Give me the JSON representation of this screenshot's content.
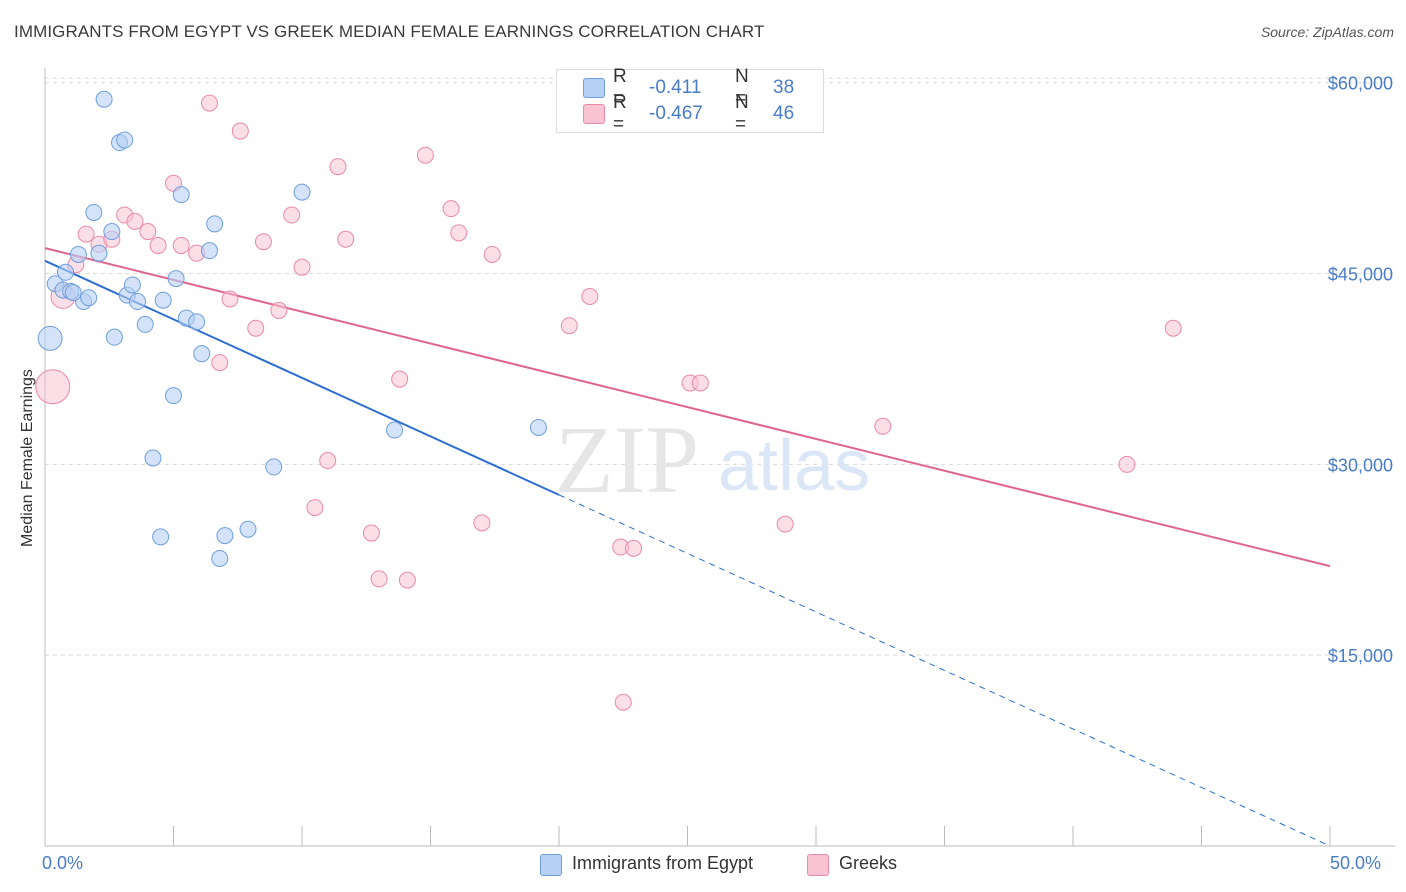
{
  "title": "IMMIGRANTS FROM EGYPT VS GREEK MEDIAN FEMALE EARNINGS CORRELATION CHART",
  "source": "Source: ZipAtlas.com",
  "watermark": {
    "zip": "ZIP",
    "atlas": "atlas"
  },
  "legend": {
    "series": [
      {
        "r_label": "R =",
        "r_value": "-0.411",
        "n_label": "N =",
        "n_value": "38"
      },
      {
        "r_label": "R =",
        "r_value": "-0.467",
        "n_label": "N =",
        "n_value": "46"
      }
    ]
  },
  "bottom_legend": [
    "Immigrants from Egypt",
    "Greeks"
  ],
  "colors": {
    "blue_fill": "#b7d1f5",
    "blue_stroke": "#6f9fdc",
    "blue_line": "#2c6fd0",
    "pink_fill": "#f9c3d3",
    "pink_stroke": "#e98aa8",
    "pink_line": "#e0648e",
    "accent_text": "#4a7cc7",
    "grid": "#d9d9d9"
  },
  "chart_data": {
    "type": "scatter",
    "title": "IMMIGRANTS FROM EGYPT VS GREEK MEDIAN FEMALE EARNINGS CORRELATION CHART",
    "xlabel": "",
    "ylabel": "Median Female Earnings",
    "xlim": [
      0,
      50
    ],
    "ylim": [
      0,
      61000
    ],
    "x_tick_labels": [
      "0.0%",
      "50.0%"
    ],
    "y_ticks": [
      15000,
      30000,
      45000,
      60000
    ],
    "y_tick_labels": [
      "$15,000",
      "$30,000",
      "$45,000",
      "$60,000"
    ],
    "grid": true,
    "legend_position": "top-center",
    "series": [
      {
        "name": "Immigrants from Egypt",
        "r": -0.411,
        "n": 38,
        "trend": {
          "x0": 0,
          "y0": 46000,
          "x_solid_end": 20,
          "x1": 50,
          "y1": 0
        },
        "points": [
          {
            "x": 0.2,
            "y": 39900,
            "s": 2
          },
          {
            "x": 0.4,
            "y": 44200,
            "s": 1
          },
          {
            "x": 0.7,
            "y": 43700,
            "s": 1
          },
          {
            "x": 0.8,
            "y": 45100,
            "s": 1
          },
          {
            "x": 1.0,
            "y": 43600,
            "s": 1
          },
          {
            "x": 1.3,
            "y": 46500,
            "s": 1
          },
          {
            "x": 1.5,
            "y": 42800,
            "s": 1
          },
          {
            "x": 1.7,
            "y": 43100,
            "s": 1
          },
          {
            "x": 1.9,
            "y": 49800,
            "s": 1
          },
          {
            "x": 2.1,
            "y": 46600,
            "s": 1
          },
          {
            "x": 2.3,
            "y": 58700,
            "s": 1
          },
          {
            "x": 2.6,
            "y": 48300,
            "s": 1
          },
          {
            "x": 2.7,
            "y": 40000,
            "s": 1
          },
          {
            "x": 2.9,
            "y": 55300,
            "s": 1
          },
          {
            "x": 3.1,
            "y": 55500,
            "s": 1
          },
          {
            "x": 3.2,
            "y": 43300,
            "s": 1
          },
          {
            "x": 3.4,
            "y": 44100,
            "s": 1
          },
          {
            "x": 3.6,
            "y": 42800,
            "s": 1
          },
          {
            "x": 3.9,
            "y": 41000,
            "s": 1
          },
          {
            "x": 4.2,
            "y": 30500,
            "s": 1
          },
          {
            "x": 4.5,
            "y": 24300,
            "s": 1
          },
          {
            "x": 4.6,
            "y": 42900,
            "s": 1
          },
          {
            "x": 5.0,
            "y": 35400,
            "s": 1
          },
          {
            "x": 5.1,
            "y": 44600,
            "s": 1
          },
          {
            "x": 5.3,
            "y": 51200,
            "s": 1
          },
          {
            "x": 5.5,
            "y": 41500,
            "s": 1
          },
          {
            "x": 5.9,
            "y": 41200,
            "s": 1
          },
          {
            "x": 6.1,
            "y": 38700,
            "s": 1
          },
          {
            "x": 6.4,
            "y": 46800,
            "s": 1
          },
          {
            "x": 6.6,
            "y": 48900,
            "s": 1
          },
          {
            "x": 6.8,
            "y": 22600,
            "s": 1
          },
          {
            "x": 7.0,
            "y": 24400,
            "s": 1
          },
          {
            "x": 7.9,
            "y": 24900,
            "s": 1
          },
          {
            "x": 8.9,
            "y": 29800,
            "s": 1
          },
          {
            "x": 10.0,
            "y": 51400,
            "s": 1
          },
          {
            "x": 13.6,
            "y": 32700,
            "s": 1
          },
          {
            "x": 19.2,
            "y": 32900,
            "s": 1
          },
          {
            "x": 1.1,
            "y": 43500,
            "s": 1
          }
        ]
      },
      {
        "name": "Greeks",
        "r": -0.467,
        "n": 46,
        "trend": {
          "x0": 0,
          "y0": 47000,
          "x1": 50,
          "y1": 22000
        },
        "points": [
          {
            "x": 0.3,
            "y": 36100,
            "s": 3
          },
          {
            "x": 0.7,
            "y": 43200,
            "s": 2
          },
          {
            "x": 1.2,
            "y": 45700,
            "s": 1
          },
          {
            "x": 1.6,
            "y": 48100,
            "s": 1
          },
          {
            "x": 2.1,
            "y": 47300,
            "s": 1
          },
          {
            "x": 2.6,
            "y": 47700,
            "s": 1
          },
          {
            "x": 3.1,
            "y": 49600,
            "s": 1
          },
          {
            "x": 3.5,
            "y": 49100,
            "s": 1
          },
          {
            "x": 4.0,
            "y": 48300,
            "s": 1
          },
          {
            "x": 4.4,
            "y": 47200,
            "s": 1
          },
          {
            "x": 5.0,
            "y": 52100,
            "s": 1
          },
          {
            "x": 5.3,
            "y": 47200,
            "s": 1
          },
          {
            "x": 5.9,
            "y": 46600,
            "s": 1
          },
          {
            "x": 6.4,
            "y": 58400,
            "s": 1
          },
          {
            "x": 6.8,
            "y": 38000,
            "s": 1
          },
          {
            "x": 7.2,
            "y": 43000,
            "s": 1
          },
          {
            "x": 7.6,
            "y": 56200,
            "s": 1
          },
          {
            "x": 8.2,
            "y": 40700,
            "s": 1
          },
          {
            "x": 8.5,
            "y": 47500,
            "s": 1
          },
          {
            "x": 9.1,
            "y": 42100,
            "s": 1
          },
          {
            "x": 9.6,
            "y": 49600,
            "s": 1
          },
          {
            "x": 10.0,
            "y": 45500,
            "s": 1
          },
          {
            "x": 10.5,
            "y": 26600,
            "s": 1
          },
          {
            "x": 11.0,
            "y": 30300,
            "s": 1
          },
          {
            "x": 11.4,
            "y": 53400,
            "s": 1
          },
          {
            "x": 11.7,
            "y": 47700,
            "s": 1
          },
          {
            "x": 12.7,
            "y": 24600,
            "s": 1
          },
          {
            "x": 13.0,
            "y": 21000,
            "s": 1
          },
          {
            "x": 13.8,
            "y": 36700,
            "s": 1
          },
          {
            "x": 14.1,
            "y": 20900,
            "s": 1
          },
          {
            "x": 14.8,
            "y": 54300,
            "s": 1
          },
          {
            "x": 15.8,
            "y": 50100,
            "s": 1
          },
          {
            "x": 16.1,
            "y": 48200,
            "s": 1
          },
          {
            "x": 17.0,
            "y": 25400,
            "s": 1
          },
          {
            "x": 17.4,
            "y": 46500,
            "s": 1
          },
          {
            "x": 20.4,
            "y": 40900,
            "s": 1
          },
          {
            "x": 21.2,
            "y": 43200,
            "s": 1
          },
          {
            "x": 22.4,
            "y": 23500,
            "s": 1
          },
          {
            "x": 22.5,
            "y": 11300,
            "s": 1
          },
          {
            "x": 22.9,
            "y": 23400,
            "s": 1
          },
          {
            "x": 25.1,
            "y": 36400,
            "s": 1
          },
          {
            "x": 25.5,
            "y": 36400,
            "s": 1
          },
          {
            "x": 28.8,
            "y": 25300,
            "s": 1
          },
          {
            "x": 32.6,
            "y": 33000,
            "s": 1
          },
          {
            "x": 42.1,
            "y": 30000,
            "s": 1
          },
          {
            "x": 43.9,
            "y": 40700,
            "s": 1
          }
        ]
      }
    ]
  }
}
